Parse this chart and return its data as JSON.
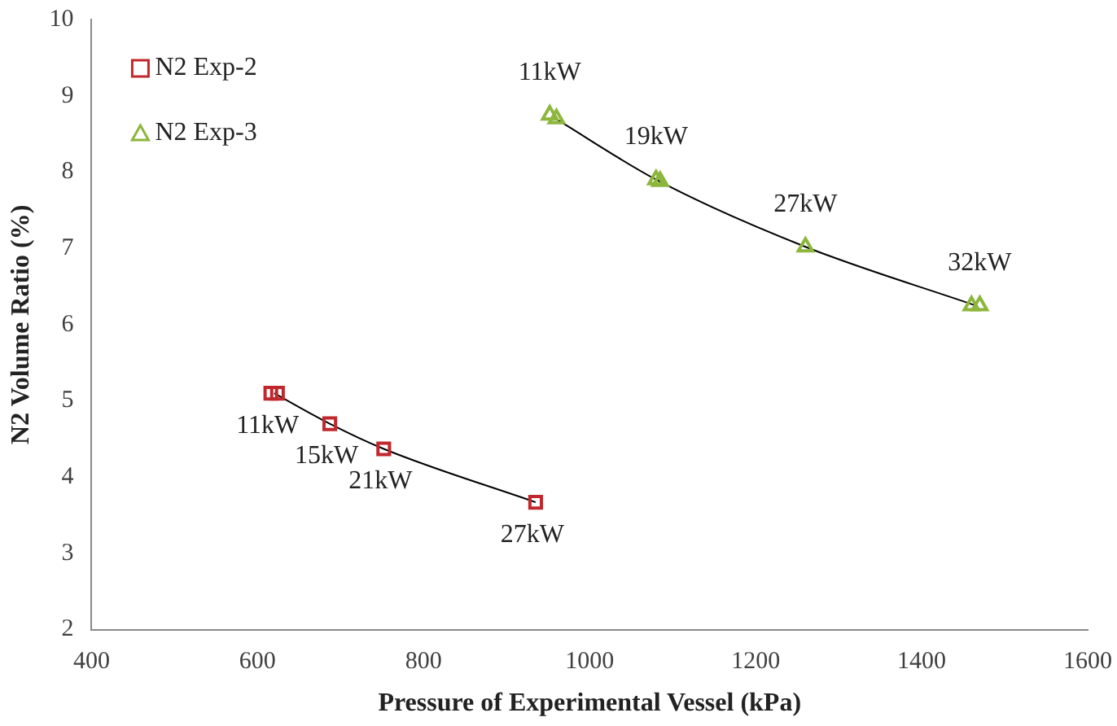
{
  "chart_data": {
    "type": "scatter",
    "xlabel": "Pressure of Experimental Vessel (kPa)",
    "ylabel": "N2 Volume Ratio (%)",
    "xlim": [
      400,
      1600
    ],
    "xticks": [
      400,
      600,
      800,
      1000,
      1200,
      1400,
      1600
    ],
    "ylim": [
      2,
      10
    ],
    "yticks": [
      2,
      3,
      4,
      5,
      6,
      7,
      8,
      9,
      10
    ],
    "grid": false,
    "legend": "top left",
    "series": [
      {
        "name": "N2 Exp-2",
        "marker": "square",
        "color": "#c0282d",
        "x": [
          616,
          624,
          687,
          752,
          935
        ],
        "values": [
          5.1,
          5.1,
          4.7,
          4.37,
          3.67
        ]
      },
      {
        "name": "N2 Exp-3",
        "marker": "triangle",
        "color": "#8cb63c",
        "x": [
          952,
          960,
          1080,
          1085,
          1260,
          1460,
          1470
        ],
        "values": [
          8.75,
          8.7,
          7.9,
          7.88,
          7.02,
          6.25,
          6.25
        ]
      },
      {
        "type": "line",
        "color": "#000000",
        "marker": "none",
        "x": [
          620,
          687,
          752,
          935
        ],
        "values": [
          5.1,
          4.7,
          4.37,
          3.67
        ]
      },
      {
        "type": "line",
        "color": "#000000",
        "marker": "none",
        "x": [
          956,
          1082,
          1260,
          1465
        ],
        "values": [
          8.72,
          7.89,
          7.02,
          6.25
        ]
      }
    ],
    "annotations": [
      {
        "text": "11kW",
        "x": 616,
        "y": 5.1
      },
      {
        "text": "15kW",
        "x": 687,
        "y": 4.7
      },
      {
        "text": "21kW",
        "x": 752,
        "y": 4.37
      },
      {
        "text": "27kW",
        "x": 935,
        "y": 3.67
      },
      {
        "text": "11kW",
        "x": 952,
        "y": 8.75
      },
      {
        "text": "19kW",
        "x": 1080,
        "y": 7.9
      },
      {
        "text": "27kW",
        "x": 1260,
        "y": 7.02
      },
      {
        "text": "32kW",
        "x": 1470,
        "y": 6.25
      }
    ]
  }
}
